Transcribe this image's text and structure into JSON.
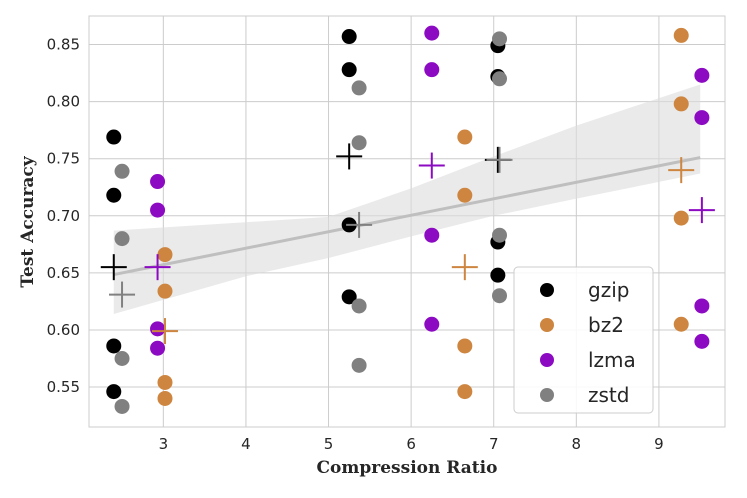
{
  "chart_data": {
    "type": "scatter",
    "xlabel": "Compression Ratio",
    "ylabel": "Test Accuracy",
    "xlim": [
      2.1,
      9.8
    ],
    "ylim": [
      0.515,
      0.875
    ],
    "xticks": [
      3,
      4,
      5,
      6,
      7,
      8,
      9
    ],
    "yticks": [
      0.55,
      0.6,
      0.65,
      0.7,
      0.75,
      0.8,
      0.85
    ],
    "grid": true,
    "legend_position": "bottom-right",
    "colors": {
      "gzip": "#000000",
      "bz2": "#cd853f",
      "lzma": "#8b0ac2",
      "zstd": "#808080",
      "regression": "#bfbfbf",
      "band": "#dcdcdc",
      "grid": "#cccccc"
    },
    "series": [
      {
        "name": "gzip",
        "x": 2.4,
        "points": [
          0.769,
          0.718,
          0.586,
          0.546
        ],
        "mean": 0.655
      },
      {
        "name": "gzip",
        "x": 5.25,
        "points": [
          0.857,
          0.828,
          0.692,
          0.629
        ],
        "mean": 0.752
      },
      {
        "name": "gzip",
        "x": 7.05,
        "points": [
          0.849,
          0.822,
          0.677,
          0.648
        ],
        "mean": 0.749
      },
      {
        "name": "bz2",
        "x": 3.02,
        "points": [
          0.666,
          0.634,
          0.554,
          0.54
        ],
        "mean": 0.599
      },
      {
        "name": "bz2",
        "x": 6.65,
        "points": [
          0.769,
          0.718,
          0.586,
          0.546
        ],
        "mean": 0.655
      },
      {
        "name": "bz2",
        "x": 9.27,
        "points": [
          0.858,
          0.798,
          0.698,
          0.605
        ],
        "mean": 0.74
      },
      {
        "name": "lzma",
        "x": 2.93,
        "points": [
          0.73,
          0.705,
          0.601,
          0.584
        ],
        "mean": 0.655
      },
      {
        "name": "lzma",
        "x": 6.25,
        "points": [
          0.86,
          0.828,
          0.683,
          0.605
        ],
        "mean": 0.744
      },
      {
        "name": "lzma",
        "x": 9.52,
        "points": [
          0.823,
          0.786,
          0.621,
          0.59
        ],
        "mean": 0.705
      },
      {
        "name": "zstd",
        "x": 2.5,
        "points": [
          0.739,
          0.68,
          0.575,
          0.533
        ],
        "mean": 0.631
      },
      {
        "name": "zstd",
        "x": 5.37,
        "points": [
          0.812,
          0.764,
          0.621,
          0.569
        ],
        "mean": 0.692
      },
      {
        "name": "zstd",
        "x": 7.07,
        "points": [
          0.855,
          0.82,
          0.683,
          0.63
        ],
        "mean": 0.749
      }
    ],
    "regression": {
      "line": [
        [
          2.4,
          0.6485
        ],
        [
          9.5,
          0.751
        ]
      ],
      "band_upper": [
        [
          2.4,
          0.687
        ],
        [
          5.0,
          0.699
        ],
        [
          6.0,
          0.724
        ],
        [
          7.0,
          0.752
        ],
        [
          8.0,
          0.779
        ],
        [
          9.5,
          0.815
        ]
      ],
      "band_lower": [
        [
          2.4,
          0.614
        ],
        [
          4.0,
          0.647
        ],
        [
          5.0,
          0.663
        ],
        [
          6.0,
          0.682
        ],
        [
          7.0,
          0.7
        ],
        [
          8.0,
          0.715
        ],
        [
          9.5,
          0.737
        ]
      ]
    },
    "legend": [
      "gzip",
      "bz2",
      "lzma",
      "zstd"
    ]
  }
}
